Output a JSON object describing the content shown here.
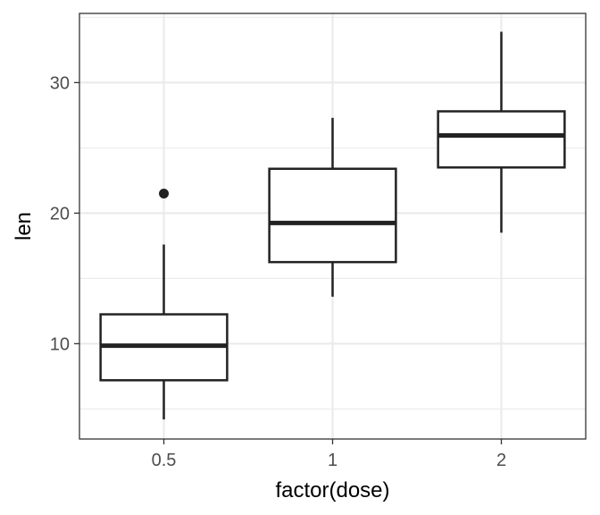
{
  "chart_data": {
    "type": "box",
    "xlabel": "factor(dose)",
    "ylabel": "len",
    "categories": [
      "0.5",
      "1",
      "2"
    ],
    "ylim": [
      2.7,
      35.3
    ],
    "y_ticks": [
      10,
      20,
      30
    ],
    "y_minor_ticks": [
      5,
      15,
      25,
      35
    ],
    "grid": true,
    "boxes": [
      {
        "category": "0.5",
        "whisker_low": 4.2,
        "q1": 7.2,
        "median": 9.85,
        "q3": 12.25,
        "whisker_high": 17.6,
        "outliers": [
          21.5
        ]
      },
      {
        "category": "1",
        "whisker_low": 13.6,
        "q1": 16.25,
        "median": 19.25,
        "q3": 23.4,
        "whisker_high": 27.3,
        "outliers": []
      },
      {
        "category": "2",
        "whisker_low": 18.5,
        "q1": 23.5,
        "median": 25.95,
        "q3": 27.8,
        "whisker_high": 33.9,
        "outliers": []
      }
    ],
    "colors": {
      "box_stroke": "#222222",
      "box_fill": "#ffffff",
      "grid": "#ebebeb",
      "panel_border": "#333333",
      "tick_text": "#4d4d4d"
    }
  }
}
